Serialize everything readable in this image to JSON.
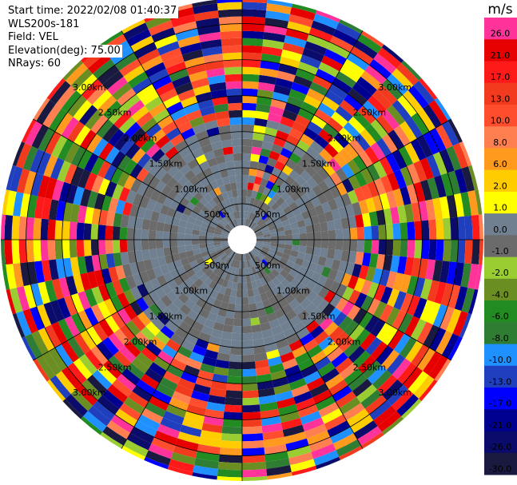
{
  "header": {
    "start_time": "Start time: 2022/02/08 01:40:37",
    "instrument": "WLS200s-181",
    "field": "Field: VEL",
    "elevation": "Elevation(deg): 75.00",
    "nrays": "NRays: 60"
  },
  "chart_data": {
    "type": "heatmap",
    "projection": "polar (PPI)",
    "field": "VEL",
    "n_rays": 60,
    "elevation_deg": 75.0,
    "range_rings_m": [
      500,
      1000,
      1500,
      2000,
      2500,
      3000
    ],
    "range_ring_labels": [
      "500m",
      "1.00km",
      "1.50km",
      "2.00km",
      "2.50km",
      "3.00km"
    ],
    "max_range_m": 3350,
    "radial_lines_deg": [
      0,
      30,
      60,
      90,
      120,
      150,
      180,
      210,
      240,
      270,
      300,
      330
    ],
    "colorbar": {
      "unit": "m/s",
      "tick_labels": [
        "26.0",
        "21.0",
        "17.0",
        "13.0",
        "10.0",
        "8.0",
        "6.0",
        "2.0",
        "1.0",
        "0.0",
        "-1.0",
        "-2.0",
        "-4.0",
        "-6.0",
        "-8.0",
        "-10.0",
        "-13.0",
        "-17.0",
        "-21.0",
        "-26.0",
        "-30.0"
      ],
      "colors": [
        "#ff3399",
        "#e60000",
        "#ff1a1a",
        "#f23a1e",
        "#ff4d2e",
        "#ff7f50",
        "#ff9a1f",
        "#ffcc00",
        "#ffff00",
        "#708090",
        "#6b6b6b",
        "#9acd32",
        "#6b8e23",
        "#228b22",
        "#2e7d32",
        "#1e90ff",
        "#1f3fbf",
        "#0000ff",
        "#000090",
        "#0b0b6b",
        "#1a1a40"
      ]
    },
    "clear_air_range_m": 1750
  }
}
